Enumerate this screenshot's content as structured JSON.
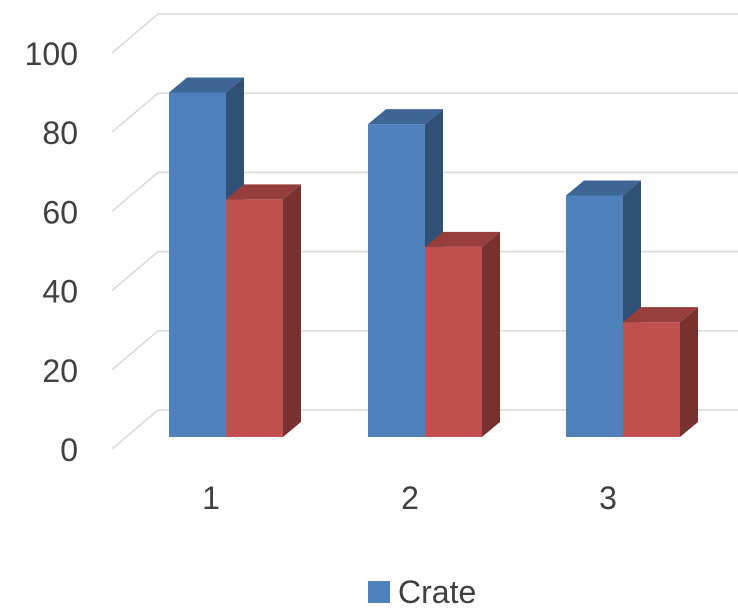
{
  "chart_data": {
    "type": "bar",
    "style": "3d-clustered-column",
    "categories": [
      "1",
      "2",
      "3"
    ],
    "series": [
      {
        "name": "Crate",
        "values": [
          87,
          79,
          61
        ],
        "color": "#4f81bd"
      },
      {
        "values": [
          60,
          48,
          29
        ],
        "color": "#c0504d"
      }
    ],
    "y_ticks": [
      "0",
      "20",
      "40",
      "60",
      "80",
      "100"
    ],
    "ylim": [
      0,
      100
    ],
    "grid": true,
    "legend": "bottom-center",
    "title": "",
    "xlabel": "",
    "ylabel": ""
  },
  "legend": {
    "label": "Crate",
    "color": "#4f81bd"
  }
}
